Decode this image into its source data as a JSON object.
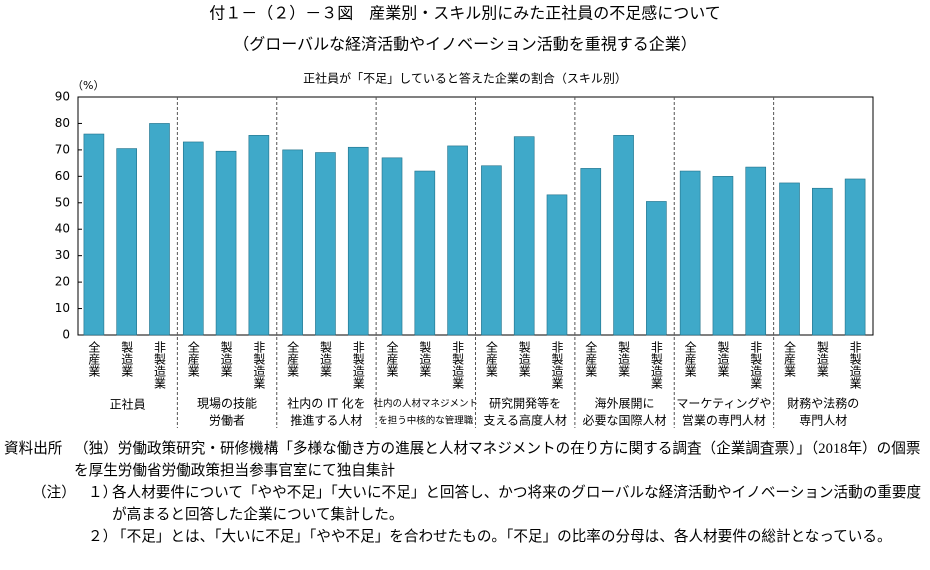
{
  "chart_data": {
    "type": "grouped_bar",
    "title": "付１－（２）－３図　産業別・スキル別にみた正社員の不足感について",
    "subtitle": "（グローバルな経済活動やイノベーション活動を重視する企業）",
    "chart_title": "正社員が「不足」していると答えた企業の割合（スキル別）",
    "y_label": "（%）",
    "subcategories": [
      "全産業",
      "製造業",
      "非製造業"
    ],
    "groups": [
      {
        "name": [
          "正社員"
        ],
        "values": [
          76,
          70.5,
          80
        ]
      },
      {
        "name": [
          "現場の技能",
          "労働者"
        ],
        "values": [
          73,
          69.5,
          75.5
        ]
      },
      {
        "name": [
          "社内の IT 化を",
          "推進する人材"
        ],
        "values": [
          70,
          69,
          71
        ]
      },
      {
        "name": [
          "社内の人材マネジメント",
          "を担う中核的な管理職"
        ],
        "values": [
          67,
          62,
          71.5
        ]
      },
      {
        "name": [
          "研究開発等を",
          "支える高度人材"
        ],
        "values": [
          64,
          75,
          53
        ]
      },
      {
        "name": [
          "海外展開に",
          "必要な国際人材"
        ],
        "values": [
          63,
          75.5,
          50.5
        ]
      },
      {
        "name": [
          "マーケティングや",
          "営業の専門人材"
        ],
        "values": [
          62,
          60,
          63.5
        ]
      },
      {
        "name": [
          "財務や法務の",
          "専門人材"
        ],
        "values": [
          57.5,
          55.5,
          59
        ]
      }
    ],
    "color": "#3fa9c9",
    "ylim": [
      0,
      90
    ],
    "yticks": [
      0,
      10,
      20,
      30,
      40,
      50,
      60,
      70,
      80,
      90
    ]
  },
  "notes": {
    "source_label": "資料出所",
    "source": "（独）労働政策研究・研修機構「多様な働き方の進展と人材マネジメントの在り方に関する調査（企業調査票）」（2018年）の個票を厚生労働省労働政策担当参事官室にて独自集計",
    "note_label": "（注）",
    "items": [
      {
        "num": "１）",
        "text": "各人材要件について「やや不足」「大いに不足」と回答し、かつ将来のグローバルな経済活動やイノベーション活動の重要度が高まると回答した企業について集計した。"
      },
      {
        "num": "２）",
        "text": "「不足」とは、「大いに不足」「やや不足」を合わせたもの。「不足」の比率の分母は、各人材要件の総計となっている。"
      }
    ]
  }
}
